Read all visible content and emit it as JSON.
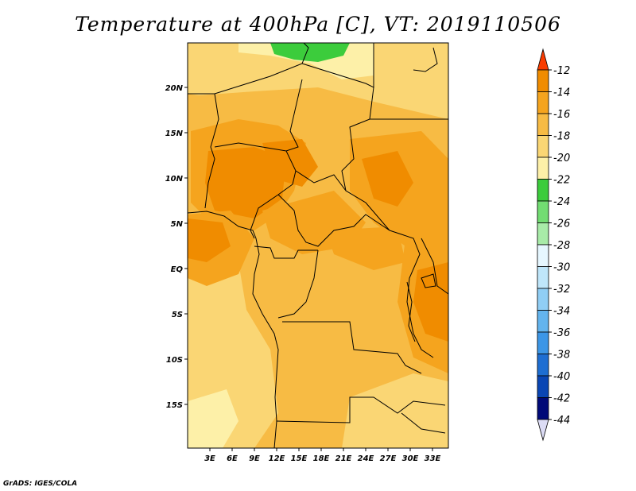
{
  "title": "Temperature at 400hPa [C], VT: 2019110506",
  "credit": "GrADS: IGES/COLA",
  "map": {
    "lat_labels": [
      "20N",
      "15N",
      "10N",
      "5N",
      "EQ",
      "5S",
      "10S",
      "15S"
    ],
    "lon_labels": [
      "3E",
      "6E",
      "9E",
      "12E",
      "15E",
      "18E",
      "21E",
      "24E",
      "27E",
      "30E",
      "33E"
    ]
  },
  "colorbar": {
    "labels": [
      "-12",
      "-14",
      "-16",
      "-18",
      "-20",
      "-22",
      "-24",
      "-26",
      "-28",
      "-30",
      "-32",
      "-34",
      "-36",
      "-38",
      "-40",
      "-42",
      "-44"
    ],
    "colors": [
      "#fa3c00",
      "#f08c00",
      "#f5a41e",
      "#f7bb44",
      "#fad674",
      "#fdf0a8",
      "#3ccc3c",
      "#72dc72",
      "#a8eba8",
      "#e6f7ff",
      "#bfe6fa",
      "#90cef5",
      "#63b4ee",
      "#3c96e6",
      "#1e6ed2",
      "#0a46b4",
      "#000a78",
      "#dcdcf5"
    ]
  }
}
